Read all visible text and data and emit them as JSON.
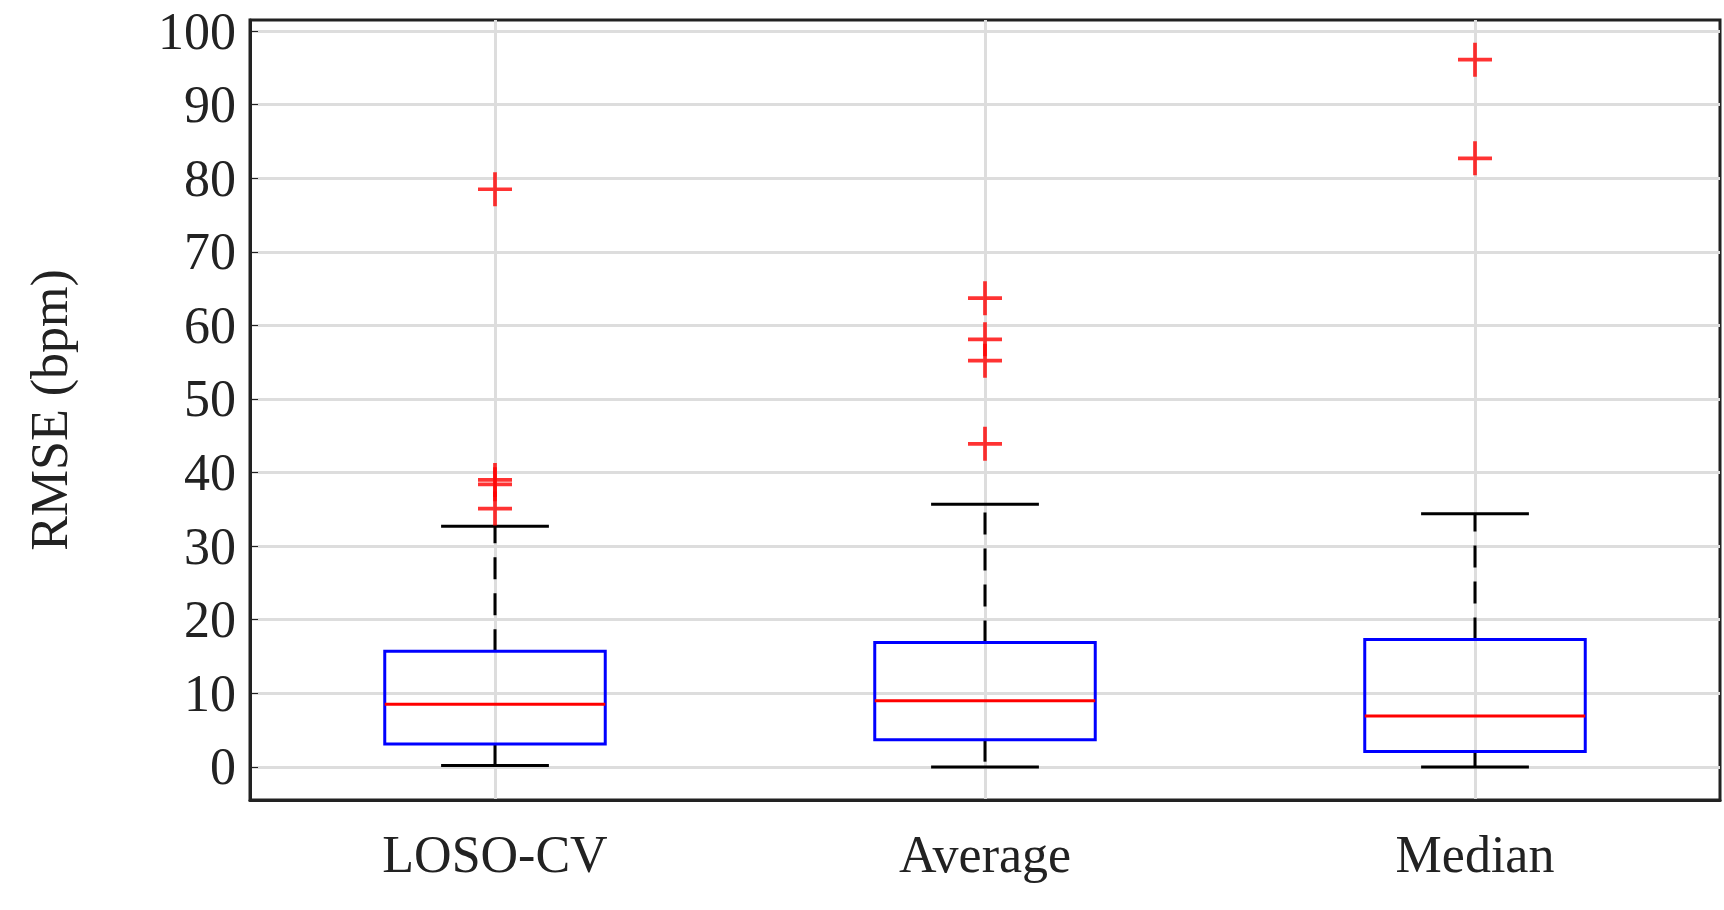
{
  "chart_data": {
    "type": "box",
    "ylabel": "RMSE (bpm)",
    "categories": [
      "LOSO-CV",
      "Average",
      "Median"
    ],
    "color": "#0000ff",
    "boxes": [
      {
        "low": 0.2,
        "q1": 3.1,
        "median": 8.5,
        "q3": 15.7,
        "high": 32.7,
        "outliers": [
          78.5,
          39,
          38.4,
          35.1
        ]
      },
      {
        "low": 0,
        "q1": 3.7,
        "median": 9,
        "q3": 16.9,
        "high": 35.7,
        "outliers": [
          63.7,
          58.1,
          55.2,
          43.9
        ]
      },
      {
        "low": 0,
        "q1": 2.1,
        "median": 6.9,
        "q3": 17.3,
        "high": 34.4,
        "outliers": [
          96.1,
          82.7
        ]
      }
    ],
    "ylim": [
      -4.5,
      101.5
    ],
    "yticks": [
      0,
      10,
      20,
      30,
      40,
      50,
      60,
      70,
      80,
      90,
      100
    ],
    "grid": true,
    "marker": "cross"
  }
}
